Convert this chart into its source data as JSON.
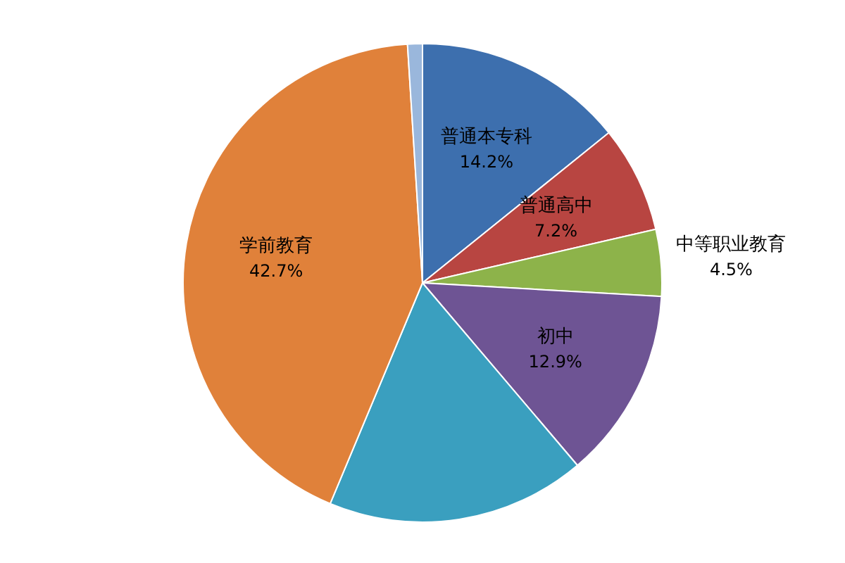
{
  "chart_data": {
    "type": "pie",
    "categories": [
      "普通本专科",
      "普通高中",
      "中等职业教育",
      "初中",
      null,
      "学前教育",
      null
    ],
    "values": [
      14.2,
      7.2,
      4.5,
      12.9,
      17.5,
      42.7,
      1.0
    ],
    "value_labels": [
      "14.2%",
      "7.2%",
      "4.5%",
      "12.9%",
      null,
      "42.7%",
      null
    ],
    "colors": [
      "#3d6fae",
      "#b84541",
      "#8db34a",
      "#6e5494",
      "#3a9fbf",
      "#e0813a",
      "#9ab7dc"
    ],
    "legend": false
  }
}
